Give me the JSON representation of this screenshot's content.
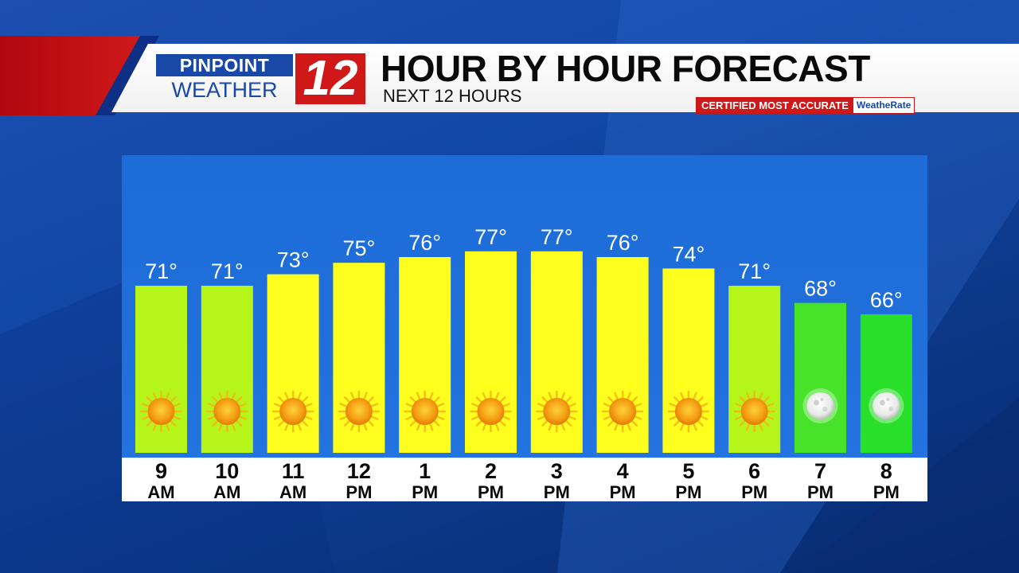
{
  "header": {
    "logo_top": "PINPOINT",
    "logo_bottom": "WEATHER",
    "logo_number": "12",
    "title": "HOUR BY HOUR FORECAST",
    "subtitle": "NEXT 12 HOURS",
    "certified": "CERTIFIED MOST ACCURATE",
    "weatherate": "WeatheRate"
  },
  "colors": {
    "header_red": "#d01818",
    "brand_blue": "#1848a8",
    "panel_blue": "#1f6fdb",
    "bar_yellow": "#ffff1e",
    "bar_lime": "#b5f51a",
    "bar_green": "#46e32a",
    "bar_green_dark": "#28df2a"
  },
  "chart_data": {
    "type": "bar",
    "categories": [
      "9 AM",
      "10 AM",
      "11 AM",
      "12 PM",
      "1 PM",
      "2 PM",
      "3 PM",
      "4 PM",
      "5 PM",
      "6 PM",
      "7 PM",
      "8 PM"
    ],
    "hours": [
      "9",
      "10",
      "11",
      "12",
      "1",
      "2",
      "3",
      "4",
      "5",
      "6",
      "7",
      "8"
    ],
    "periods": [
      "AM",
      "AM",
      "AM",
      "PM",
      "PM",
      "PM",
      "PM",
      "PM",
      "PM",
      "PM",
      "PM",
      "PM"
    ],
    "values": [
      71,
      71,
      73,
      75,
      76,
      77,
      77,
      76,
      74,
      71,
      68,
      66
    ],
    "labels": [
      "71°",
      "71°",
      "73°",
      "75°",
      "76°",
      "77°",
      "77°",
      "76°",
      "74°",
      "71°",
      "68°",
      "66°"
    ],
    "icons": [
      "sun-icon",
      "sun-icon",
      "sun-icon",
      "sun-icon",
      "sun-icon",
      "sun-icon",
      "sun-icon",
      "sun-icon",
      "sun-icon",
      "sun-icon",
      "moon-icon",
      "moon-icon"
    ],
    "bar_colors": [
      "#b5f51a",
      "#b5f51a",
      "#ffff1e",
      "#ffff1e",
      "#ffff1e",
      "#ffff1e",
      "#ffff1e",
      "#ffff1e",
      "#ffff1e",
      "#b5f51a",
      "#46e32a",
      "#28df2a"
    ],
    "title": "HOUR BY HOUR FORECAST",
    "ylim": [
      0,
      100
    ],
    "grid": false
  }
}
